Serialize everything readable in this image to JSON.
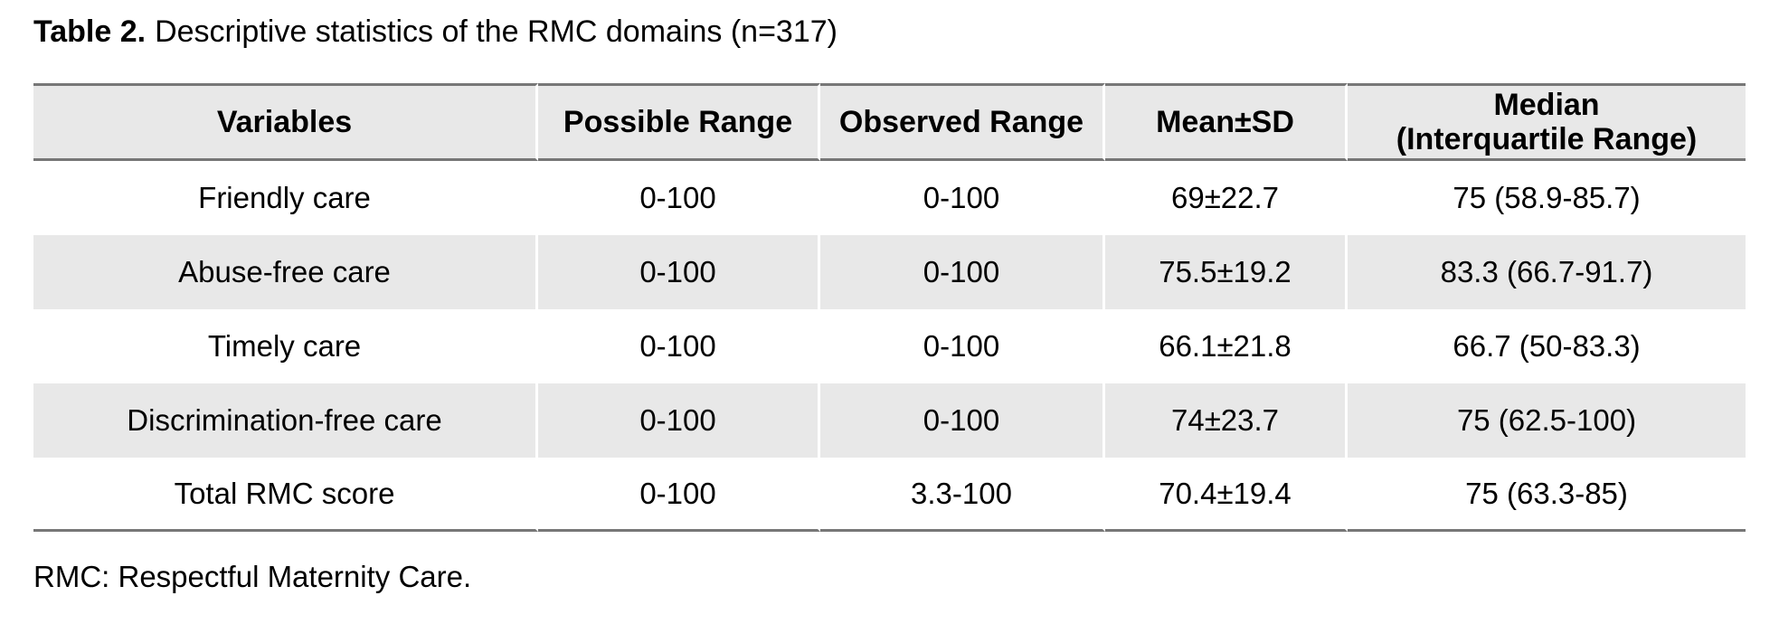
{
  "caption": {
    "label": "Table 2.",
    "text": "Descriptive statistics of the RMC domains (n=317)"
  },
  "table": {
    "headers": {
      "variables": "Variables",
      "possible_range": "Possible Range",
      "observed_range": "Observed Range",
      "mean_sd": "Mean±SD",
      "median_iqr": "Median\n(Interquartile Range)"
    },
    "rows": [
      {
        "variable": "Friendly care",
        "possible_range": "0-100",
        "observed_range": "0-100",
        "mean_sd": "69±22.7",
        "median_iqr": "75 (58.9-85.7)"
      },
      {
        "variable": "Abuse-free care",
        "possible_range": "0-100",
        "observed_range": "0-100",
        "mean_sd": "75.5±19.2",
        "median_iqr": "83.3 (66.7-91.7)"
      },
      {
        "variable": "Timely care",
        "possible_range": "0-100",
        "observed_range": "0-100",
        "mean_sd": "66.1±21.8",
        "median_iqr": "66.7 (50-83.3)"
      },
      {
        "variable": "Discrimination-free care",
        "possible_range": "0-100",
        "observed_range": "0-100",
        "mean_sd": "74±23.7",
        "median_iqr": "75 (62.5-100)"
      },
      {
        "variable": "Total RMC score",
        "possible_range": "0-100",
        "observed_range": "3.3-100",
        "mean_sd": "70.4±19.4",
        "median_iqr": "75 (63.3-85)"
      }
    ]
  },
  "footnote": "RMC: Respectful Maternity Care.",
  "colors": {
    "shaded_row_bg": "#e8e8e8",
    "rule": "#777777",
    "text": "#000000",
    "page_bg": "#ffffff"
  }
}
